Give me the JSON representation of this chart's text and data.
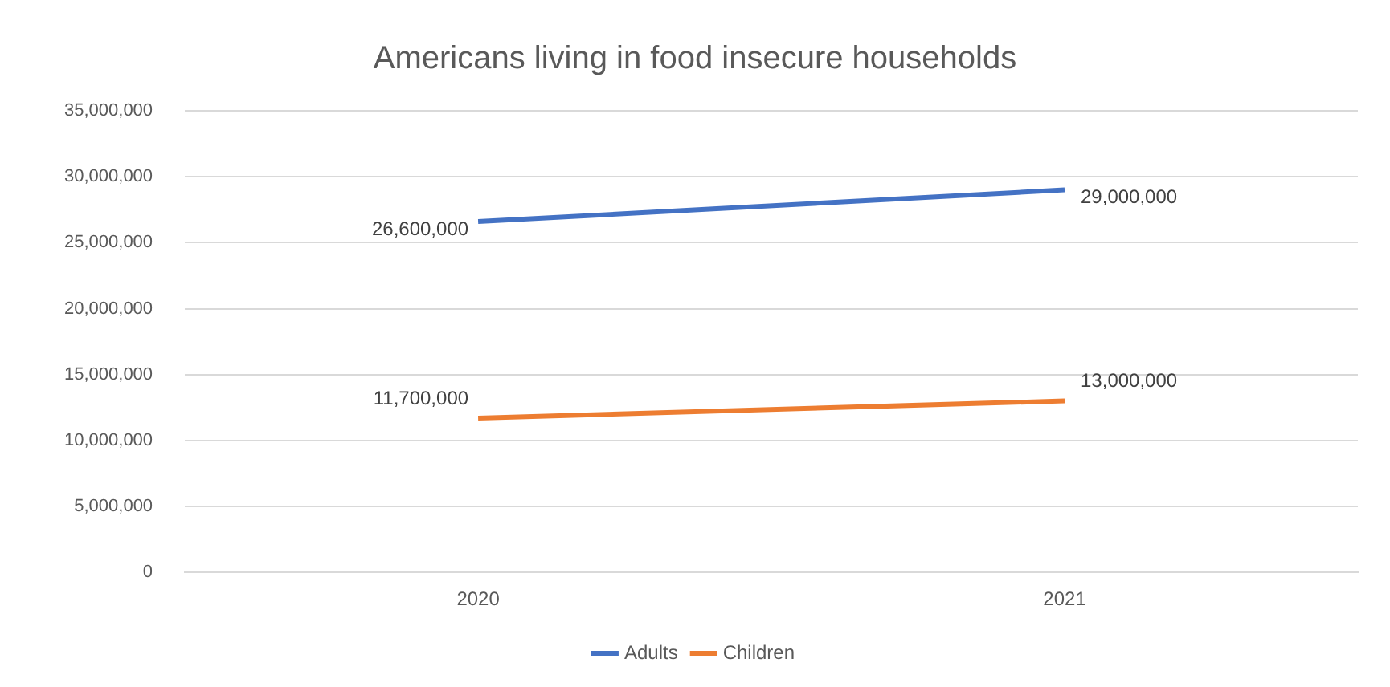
{
  "chart_data": {
    "type": "line",
    "title": "Americans living in food insecure households",
    "categories": [
      "2020",
      "2021"
    ],
    "series": [
      {
        "name": "Adults",
        "color": "#4472c4",
        "values": [
          26600000,
          29000000
        ],
        "value_labels": [
          "26,600,000",
          "29,000,000"
        ]
      },
      {
        "name": "Children",
        "color": "#ed7d31",
        "values": [
          11700000,
          13000000
        ],
        "value_labels": [
          "11,700,000",
          "13,000,000"
        ]
      }
    ],
    "ylim": [
      0,
      35000000
    ],
    "yticks": [
      {
        "value": 0,
        "label": "0"
      },
      {
        "value": 5000000,
        "label": "5,000,000"
      },
      {
        "value": 10000000,
        "label": "10,000,000"
      },
      {
        "value": 15000000,
        "label": "15,000,000"
      },
      {
        "value": 20000000,
        "label": "20,000,000"
      },
      {
        "value": 25000000,
        "label": "25,000,000"
      },
      {
        "value": 30000000,
        "label": "30,000,000"
      },
      {
        "value": 35000000,
        "label": "35,000,000"
      }
    ],
    "grid": "y",
    "legend": "bottom",
    "marker": "none",
    "line_style": "solid"
  }
}
